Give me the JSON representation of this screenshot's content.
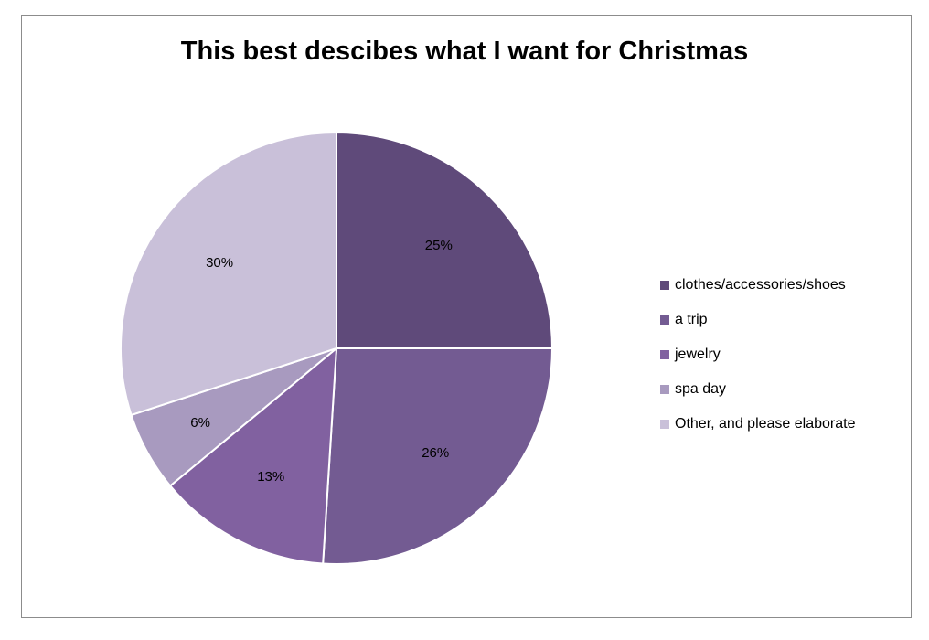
{
  "chart_data": {
    "type": "pie",
    "title": "This best descibes what I want for Christmas",
    "slices": [
      {
        "label": "clothes/accessories/shoes",
        "value": 25,
        "display": "25%",
        "color": "#5f4a7a"
      },
      {
        "label": "a trip",
        "value": 26,
        "display": "26%",
        "color": "#735b92"
      },
      {
        "label": "jewelry",
        "value": 13,
        "display": "13%",
        "color": "#8161a0"
      },
      {
        "label": "spa day",
        "value": 6,
        "display": "6%",
        "color": "#a89abf"
      },
      {
        "label": "Other, and please elaborate",
        "value": 30,
        "display": "30%",
        "color": "#c9c0d9"
      }
    ],
    "legend_position": "right"
  }
}
